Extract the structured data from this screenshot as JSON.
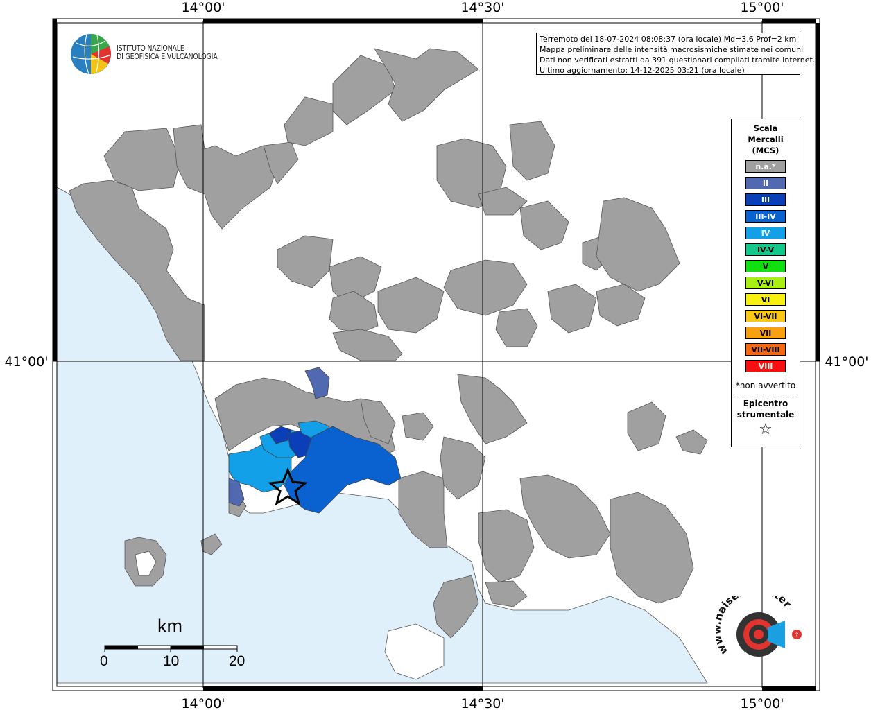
{
  "axes": {
    "longitudes": [
      "14°00'",
      "14°30'",
      "15°00'"
    ],
    "latitudes": [
      "41°00'"
    ]
  },
  "info": {
    "line1": "Terremoto del 18-07-2024 08:08:37 (ora locale) Md=3.6 Prof=2 km",
    "line2": "Mappa preliminare delle intensità macrosismiche stimate nei comuni",
    "line3": "Dati non verificati estratti da 391 questionari compilati tramite Internet.",
    "line4": "Ultimo aggiornamento: 14-12-2025 03:21 (ora locale)"
  },
  "logo": {
    "line1": "ISTITUTO NAZIONALE",
    "line2": "DI GEOFISICA E VULCANOLOGIA"
  },
  "legend": {
    "title_line1": "Scala",
    "title_line2": "Mercalli",
    "title_line3": "(MCS)",
    "items": [
      {
        "label": "n.a.*",
        "color": "#a0a0a0",
        "text_color": "#ffffff"
      },
      {
        "label": "II",
        "color": "#5069b0",
        "text_color": "#ffffff"
      },
      {
        "label": "III",
        "color": "#0a3fb8",
        "text_color": "#ffffff"
      },
      {
        "label": "III-IV",
        "color": "#0a62d0",
        "text_color": "#ffffff"
      },
      {
        "label": "IV",
        "color": "#12a0e8",
        "text_color": "#ffffff"
      },
      {
        "label": "IV-V",
        "color": "#14c88c",
        "text_color": "#000000"
      },
      {
        "label": "V",
        "color": "#10e010",
        "text_color": "#000000"
      },
      {
        "label": "V-VI",
        "color": "#a8f010",
        "text_color": "#000000"
      },
      {
        "label": "VI",
        "color": "#f8f010",
        "text_color": "#000000"
      },
      {
        "label": "VI-VII",
        "color": "#f8c814",
        "text_color": "#000000"
      },
      {
        "label": "VII",
        "color": "#f8a010",
        "text_color": "#000000"
      },
      {
        "label": "VII-VIII",
        "color": "#f86810",
        "text_color": "#000000"
      },
      {
        "label": "VIII",
        "color": "#f81010",
        "text_color": "#ffffff"
      }
    ],
    "note": "*non avvertito",
    "epicenter_line1": "Epicentro",
    "epicenter_line2": "strumentale",
    "star": "☆"
  },
  "scalebar": {
    "title": "km",
    "ticks": [
      "0",
      "10",
      "20"
    ]
  },
  "watermark": {
    "text": "www.haisentitoilterremoto.it"
  },
  "colors": {
    "sea": "#e0f0fa",
    "land_na": "#a0a0a0",
    "land_blank": "#ffffff"
  }
}
